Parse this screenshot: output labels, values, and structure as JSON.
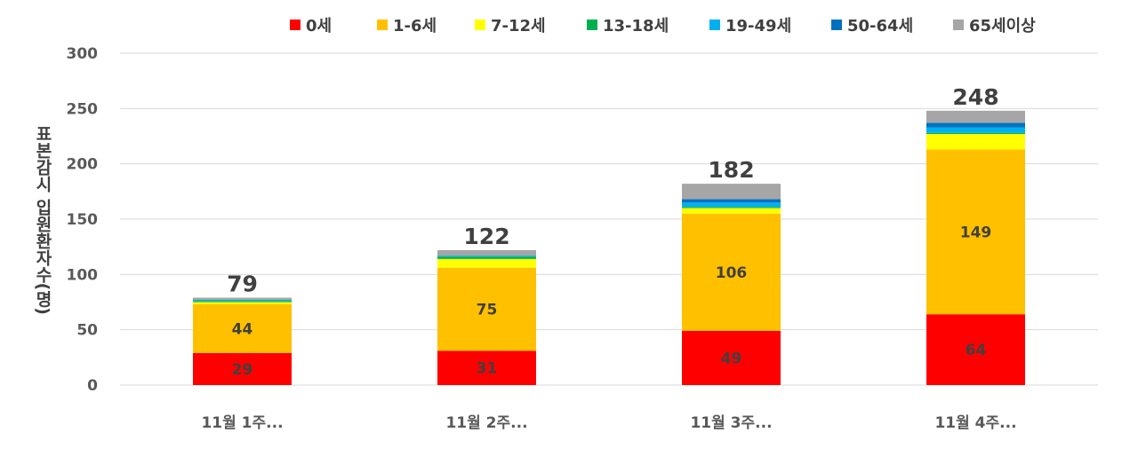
{
  "chart_data": {
    "type": "bar",
    "stacked": true,
    "categories": [
      "11월 1주...",
      "11월 2주...",
      "11월 3주...",
      "11월 4주..."
    ],
    "series": [
      {
        "name": "0세",
        "color": "#ff0000",
        "values": [
          29,
          31,
          49,
          64
        ]
      },
      {
        "name": "1-6세",
        "color": "#ffc000",
        "values": [
          44,
          75,
          106,
          149
        ]
      },
      {
        "name": "7-12세",
        "color": "#ffff00",
        "values": [
          2,
          8,
          5,
          14
        ]
      },
      {
        "name": "13-18세",
        "color": "#00b050",
        "values": [
          1,
          2,
          1,
          1
        ]
      },
      {
        "name": "19-49세",
        "color": "#00b0f0",
        "values": [
          1,
          1,
          4,
          5
        ]
      },
      {
        "name": "50-64세",
        "color": "#0070c0",
        "values": [
          0,
          0,
          3,
          4
        ]
      },
      {
        "name": "65세이상",
        "color": "#a6a6a6",
        "values": [
          2,
          5,
          14,
          11
        ]
      }
    ],
    "labeled_series": [
      0,
      1
    ],
    "totals": [
      79,
      122,
      182,
      248
    ],
    "ylabel": "표본감시 입원환자수(명)",
    "ylim": [
      0,
      300
    ],
    "yticks": [
      0,
      50,
      100,
      150,
      200,
      250,
      300
    ],
    "grid": true,
    "legend": "top"
  }
}
